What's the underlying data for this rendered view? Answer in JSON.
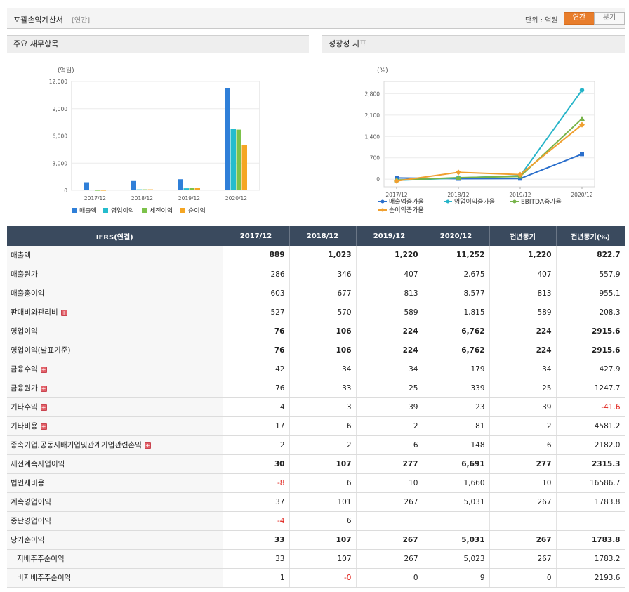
{
  "header": {
    "title": "포괄손익계산서",
    "period_tag": "[연간]",
    "unit_label": "단위 : 억원",
    "toggle_annual": "연간",
    "toggle_quarter": "분기"
  },
  "panels": {
    "left_title": "주요 재무항목",
    "right_title": "성장성 지표"
  },
  "chart_data": [
    {
      "type": "bar",
      "ylabel": "(억원)",
      "categories": [
        "2017/12",
        "2018/12",
        "2019/12",
        "2020/12"
      ],
      "yticks": [
        "12,000",
        "9,000",
        "6,000",
        "3,000",
        "0"
      ],
      "ylim": [
        0,
        12000
      ],
      "series": [
        {
          "name": "매출액",
          "color": "#2f7fd8",
          "values": [
            889,
            1023,
            1220,
            11252
          ]
        },
        {
          "name": "영업이익",
          "color": "#25bccd",
          "values": [
            76,
            106,
            224,
            6762
          ]
        },
        {
          "name": "세전이익",
          "color": "#7cc24a",
          "values": [
            30,
            107,
            277,
            6691
          ]
        },
        {
          "name": "순이익",
          "color": "#f5a623",
          "values": [
            33,
            107,
            267,
            5031
          ]
        }
      ],
      "legend": "bottom"
    },
    {
      "type": "line",
      "ylabel": "(%)",
      "categories": [
        "2017/12",
        "2018/12",
        "2019/12",
        "2020/12"
      ],
      "yticks": [
        "2,800",
        "2,100",
        "1,400",
        "700",
        "0"
      ],
      "ylim": [
        -250,
        3200
      ],
      "series": [
        {
          "name": "매출액증가율",
          "color": "#2b6fcc",
          "marker": "square",
          "values": [
            40,
            15,
            19,
            822
          ]
        },
        {
          "name": "영업이익증가율",
          "color": "#26b4c8",
          "marker": "circle",
          "values": [
            -40,
            40,
            111,
            2916
          ]
        },
        {
          "name": "EBITDA증가율",
          "color": "#77b34a",
          "marker": "triangle",
          "values": [
            -30,
            50,
            90,
            1980
          ]
        },
        {
          "name": "순이익증가율",
          "color": "#f0a030",
          "marker": "diamond",
          "values": [
            -60,
            224,
            150,
            1784
          ]
        }
      ],
      "legend": "bottom"
    }
  ],
  "table": {
    "headers": [
      "IFRS(연결)",
      "2017/12",
      "2018/12",
      "2019/12",
      "2020/12",
      "전년동기",
      "전년동기(%)"
    ],
    "rows": [
      {
        "label": "매출액",
        "bold": true,
        "expand": false,
        "sub": false,
        "values": [
          "889",
          "1,023",
          "1,220",
          "11,252",
          "1,220",
          "822.7"
        ]
      },
      {
        "label": "매출원가",
        "bold": false,
        "expand": false,
        "sub": false,
        "values": [
          "286",
          "346",
          "407",
          "2,675",
          "407",
          "557.9"
        ]
      },
      {
        "label": "매출총이익",
        "bold": false,
        "expand": false,
        "sub": false,
        "values": [
          "603",
          "677",
          "813",
          "8,577",
          "813",
          "955.1"
        ]
      },
      {
        "label": "판매비와관리비",
        "bold": false,
        "expand": true,
        "sub": false,
        "values": [
          "527",
          "570",
          "589",
          "1,815",
          "589",
          "208.3"
        ]
      },
      {
        "label": "영업이익",
        "bold": true,
        "expand": false,
        "sub": false,
        "sep": true,
        "values": [
          "76",
          "106",
          "224",
          "6,762",
          "224",
          "2915.6"
        ]
      },
      {
        "label": "영업이익(발표기준)",
        "bold": true,
        "expand": false,
        "sub": false,
        "values": [
          "76",
          "106",
          "224",
          "6,762",
          "224",
          "2915.6"
        ]
      },
      {
        "label": "금융수익",
        "bold": false,
        "expand": true,
        "sub": false,
        "values": [
          "42",
          "34",
          "34",
          "179",
          "34",
          "427.9"
        ]
      },
      {
        "label": "금융원가",
        "bold": false,
        "expand": true,
        "sub": false,
        "values": [
          "76",
          "33",
          "25",
          "339",
          "25",
          "1247.7"
        ]
      },
      {
        "label": "기타수익",
        "bold": false,
        "expand": true,
        "sub": false,
        "values": [
          "4",
          "3",
          "39",
          "23",
          "39",
          "-41.6"
        ]
      },
      {
        "label": "기타비용",
        "bold": false,
        "expand": true,
        "sub": false,
        "values": [
          "17",
          "6",
          "2",
          "81",
          "2",
          "4581.2"
        ]
      },
      {
        "label": "종속기업,공동지배기업및관계기업관련손익",
        "bold": false,
        "expand": true,
        "sub": false,
        "values": [
          "2",
          "2",
          "6",
          "148",
          "6",
          "2182.0"
        ]
      },
      {
        "label": "세전계속사업이익",
        "bold": true,
        "expand": false,
        "sub": false,
        "sep": true,
        "values": [
          "30",
          "107",
          "277",
          "6,691",
          "277",
          "2315.3"
        ]
      },
      {
        "label": "법인세비용",
        "bold": false,
        "expand": false,
        "sub": false,
        "values": [
          "-8",
          "6",
          "10",
          "1,660",
          "10",
          "16586.7"
        ]
      },
      {
        "label": "계속영업이익",
        "bold": false,
        "expand": false,
        "sub": false,
        "values": [
          "37",
          "101",
          "267",
          "5,031",
          "267",
          "1783.8"
        ]
      },
      {
        "label": "중단영업이익",
        "bold": false,
        "expand": false,
        "sub": false,
        "values": [
          "-4",
          "6",
          "",
          "",
          "",
          ""
        ]
      },
      {
        "label": "당기순이익",
        "bold": true,
        "expand": false,
        "sub": false,
        "sep": true,
        "values": [
          "33",
          "107",
          "267",
          "5,031",
          "267",
          "1783.8"
        ]
      },
      {
        "label": "지배주주순이익",
        "bold": false,
        "expand": false,
        "sub": true,
        "values": [
          "33",
          "107",
          "267",
          "5,023",
          "267",
          "1783.2"
        ]
      },
      {
        "label": "비지배주주순이익",
        "bold": false,
        "expand": false,
        "sub": true,
        "values": [
          "1",
          "-0",
          "0",
          "9",
          "0",
          "2193.6"
        ]
      }
    ]
  }
}
